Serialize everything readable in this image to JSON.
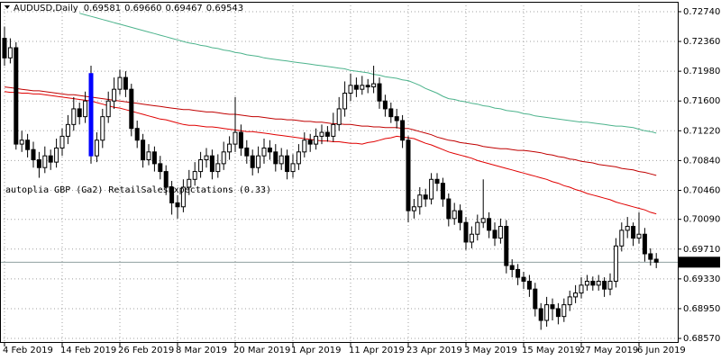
{
  "chart_data": {
    "type": "candlestick",
    "title": "AUDUSD,Daily",
    "header_ohlc": [
      "0.69581",
      "0.69660",
      "0.69467",
      "0.69543"
    ],
    "annotation": "autoplia GBP (Ga2) RetailSalesExpectations (0.33)",
    "annotation_color": "#e8e86a",
    "categories": [
      "4 Feb 2019",
      null,
      null,
      null,
      null,
      null,
      null,
      null,
      null,
      null,
      "14 Feb 2019",
      null,
      null,
      null,
      null,
      null,
      null,
      null,
      null,
      null,
      "26 Feb 2019",
      null,
      null,
      null,
      null,
      null,
      null,
      null,
      null,
      null,
      "8 Mar 2019",
      null,
      null,
      null,
      null,
      null,
      null,
      null,
      null,
      null,
      "20 Mar 2019",
      null,
      null,
      null,
      null,
      null,
      null,
      null,
      null,
      null,
      "1 Apr 2019",
      null,
      null,
      null,
      null,
      null,
      null,
      null,
      null,
      null,
      "11 Apr 2019",
      null,
      null,
      null,
      null,
      null,
      null,
      null,
      null,
      null,
      "23 Apr 2019",
      null,
      null,
      null,
      null,
      null,
      null,
      null,
      null,
      null,
      "3 May 2019",
      null,
      null,
      null,
      null,
      null,
      null,
      null,
      null,
      null,
      "15 May 2019",
      null,
      null,
      null,
      null,
      null,
      null,
      null,
      null,
      null,
      "27 May 2019",
      null,
      null,
      null,
      null,
      null,
      null,
      null,
      null,
      null,
      "6 Jun 2019",
      null,
      null,
      null
    ],
    "open": [
      0.724,
      0.7215,
      0.7228,
      0.7105,
      0.711,
      0.7098,
      0.7085,
      0.7075,
      0.709,
      0.7082,
      0.71,
      0.7115,
      0.713,
      0.715,
      0.714,
      0.7195,
      0.709,
      0.711,
      0.714,
      0.716,
      0.7175,
      0.719,
      0.7175,
      0.7125,
      0.711,
      0.7085,
      0.7095,
      0.708,
      0.707,
      0.705,
      0.703,
      0.7025,
      0.705,
      0.706,
      0.707,
      0.7085,
      0.709,
      0.707,
      0.708,
      0.7095,
      0.7105,
      0.712,
      0.71,
      0.709,
      0.7075,
      0.709,
      0.71,
      0.7095,
      0.708,
      0.709,
      0.707,
      0.708,
      0.7095,
      0.711,
      0.7105,
      0.7115,
      0.712,
      0.7115,
      0.713,
      0.715,
      0.717,
      0.718,
      0.7175,
      0.718,
      0.7178,
      0.7182,
      0.716,
      0.715,
      0.714,
      0.7135,
      0.711,
      0.702,
      0.7025,
      0.704,
      0.7035,
      0.706,
      0.7055,
      0.7035,
      0.701,
      0.702,
      0.7005,
      0.698,
      0.699,
      0.7005,
      0.701,
      0.6995,
      0.6985,
      0.7,
      0.695,
      0.6945,
      0.6935,
      0.693,
      0.692,
      0.6895,
      0.688,
      0.69,
      0.6895,
      0.6885,
      0.69,
      0.691,
      0.6915,
      0.6925,
      0.693,
      0.6925,
      0.693,
      0.692,
      0.693,
      0.6975,
      0.6995,
      0.7,
      0.6985,
      0.699,
      0.6965,
      0.69581
    ],
    "high": [
      0.7255,
      0.724,
      0.7235,
      0.7122,
      0.7118,
      0.7108,
      0.7095,
      0.7102,
      0.7098,
      0.7112,
      0.7125,
      0.7142,
      0.7165,
      0.7158,
      0.7172,
      0.7205,
      0.712,
      0.715,
      0.7172,
      0.719,
      0.72,
      0.7198,
      0.7182,
      0.7135,
      0.7118,
      0.7105,
      0.7102,
      0.709,
      0.7078,
      0.7058,
      0.704,
      0.706,
      0.7072,
      0.7082,
      0.7095,
      0.71,
      0.7098,
      0.7092,
      0.7108,
      0.7115,
      0.7165,
      0.713,
      0.711,
      0.7098,
      0.7102,
      0.7112,
      0.711,
      0.7105,
      0.71,
      0.7098,
      0.7092,
      0.7105,
      0.712,
      0.7118,
      0.7125,
      0.713,
      0.7128,
      0.7145,
      0.7165,
      0.7185,
      0.7195,
      0.719,
      0.7192,
      0.7188,
      0.7205,
      0.719,
      0.7168,
      0.7158,
      0.715,
      0.7142,
      0.7115,
      0.7035,
      0.705,
      0.7048,
      0.7068,
      0.7068,
      0.7062,
      0.7042,
      0.703,
      0.7028,
      0.7012,
      0.7,
      0.7015,
      0.706,
      0.7018,
      0.7005,
      0.701,
      0.7008,
      0.6958,
      0.6952,
      0.6942,
      0.6938,
      0.6928,
      0.6902,
      0.691,
      0.6908,
      0.6902,
      0.6908,
      0.6918,
      0.6925,
      0.6935,
      0.6938,
      0.6936,
      0.6938,
      0.6935,
      0.694,
      0.6985,
      0.7005,
      0.7012,
      0.7005,
      0.7018,
      0.6998,
      0.6972,
      0.6966
    ],
    "low": [
      0.7205,
      0.7208,
      0.7098,
      0.7095,
      0.7088,
      0.7075,
      0.7062,
      0.7068,
      0.7072,
      0.7075,
      0.709,
      0.7105,
      0.7122,
      0.713,
      0.7132,
      0.708,
      0.7082,
      0.71,
      0.7132,
      0.715,
      0.7168,
      0.7165,
      0.7115,
      0.71,
      0.7075,
      0.7078,
      0.707,
      0.706,
      0.704,
      0.7015,
      0.701,
      0.7018,
      0.704,
      0.7052,
      0.7062,
      0.7075,
      0.706,
      0.7062,
      0.7072,
      0.7085,
      0.7095,
      0.709,
      0.708,
      0.7065,
      0.7068,
      0.708,
      0.7085,
      0.707,
      0.7072,
      0.706,
      0.7062,
      0.7072,
      0.7088,
      0.7095,
      0.7098,
      0.7105,
      0.7108,
      0.7108,
      0.7122,
      0.714,
      0.716,
      0.7165,
      0.7168,
      0.717,
      0.717,
      0.715,
      0.714,
      0.7132,
      0.7125,
      0.71,
      0.7005,
      0.701,
      0.7015,
      0.7025,
      0.7028,
      0.7045,
      0.7025,
      0.7,
      0.7002,
      0.6995,
      0.697,
      0.6972,
      0.6982,
      0.6998,
      0.6985,
      0.6975,
      0.6978,
      0.694,
      0.6935,
      0.6925,
      0.692,
      0.691,
      0.6885,
      0.6868,
      0.6872,
      0.688,
      0.6875,
      0.6878,
      0.6892,
      0.6902,
      0.6908,
      0.6918,
      0.6918,
      0.6918,
      0.691,
      0.6912,
      0.6922,
      0.6968,
      0.6985,
      0.6975,
      0.6978,
      0.6955,
      0.695,
      0.69467
    ],
    "close": [
      0.7215,
      0.7228,
      0.7105,
      0.711,
      0.7098,
      0.7085,
      0.7075,
      0.709,
      0.7082,
      0.71,
      0.7115,
      0.713,
      0.715,
      0.714,
      0.716,
      0.709,
      0.711,
      0.714,
      0.716,
      0.7175,
      0.719,
      0.7175,
      0.7125,
      0.711,
      0.7085,
      0.7095,
      0.708,
      0.707,
      0.705,
      0.703,
      0.7025,
      0.705,
      0.706,
      0.707,
      0.7085,
      0.709,
      0.707,
      0.708,
      0.7095,
      0.7105,
      0.712,
      0.71,
      0.709,
      0.7075,
      0.709,
      0.71,
      0.7095,
      0.708,
      0.709,
      0.707,
      0.708,
      0.7095,
      0.711,
      0.7105,
      0.7115,
      0.712,
      0.7115,
      0.713,
      0.715,
      0.717,
      0.718,
      0.7175,
      0.718,
      0.7178,
      0.7182,
      0.716,
      0.715,
      0.714,
      0.7135,
      0.711,
      0.702,
      0.7025,
      0.704,
      0.7035,
      0.706,
      0.7055,
      0.7035,
      0.701,
      0.702,
      0.7005,
      0.698,
      0.699,
      0.7005,
      0.701,
      0.6995,
      0.6985,
      0.7,
      0.695,
      0.6945,
      0.6935,
      0.693,
      0.692,
      0.6895,
      0.688,
      0.69,
      0.6895,
      0.6885,
      0.69,
      0.691,
      0.6915,
      0.6925,
      0.693,
      0.6925,
      0.693,
      0.692,
      0.693,
      0.6975,
      0.6995,
      0.7,
      0.6985,
      0.699,
      0.6965,
      0.6958,
      0.69543
    ],
    "bull_color": "#ffffff",
    "bear_color": "#000000",
    "highlight": {
      "index": 15,
      "color": "#0000ff"
    },
    "series": [
      {
        "color": "#c00000",
        "values": [
          0.7178,
          0.7177,
          0.7176,
          0.7175,
          0.7174,
          0.7173,
          0.7173,
          0.7172,
          0.7171,
          0.717,
          0.7169,
          0.7168,
          0.7168,
          0.7167,
          0.7166,
          0.7165,
          0.7164,
          0.7163,
          0.7162,
          0.7161,
          0.716,
          0.7159,
          0.7158,
          0.7157,
          0.7156,
          0.7155,
          0.7154,
          0.7153,
          0.7152,
          0.7151,
          0.715,
          0.7149,
          0.7149,
          0.7148,
          0.7147,
          0.7146,
          0.7146,
          0.7145,
          0.7144,
          0.7143,
          0.7143,
          0.7142,
          0.7141,
          0.714,
          0.714,
          0.7139,
          0.7138,
          0.7137,
          0.7137,
          0.7136,
          0.7136,
          0.7135,
          0.7134,
          0.7134,
          0.7133,
          0.7133,
          0.7132,
          0.7131,
          0.7131,
          0.713,
          0.713,
          0.7129,
          0.7128,
          0.7128,
          0.7127,
          0.7127,
          0.7126,
          0.7126,
          0.7126,
          0.7125,
          0.7125,
          0.7123,
          0.7121,
          0.7119,
          0.7117,
          0.7114,
          0.7112,
          0.711,
          0.7109,
          0.7107,
          0.7106,
          0.7105,
          0.7104,
          0.7102,
          0.7101,
          0.71,
          0.7099,
          0.7099,
          0.7098,
          0.7097,
          0.7097,
          0.7096,
          0.7095,
          0.7094,
          0.7092,
          0.7091,
          0.7089,
          0.7088,
          0.7086,
          0.7085,
          0.7083,
          0.7082,
          0.7081,
          0.7079,
          0.7078,
          0.7077,
          0.7076,
          0.7074,
          0.7073,
          0.7072,
          0.707,
          0.7069,
          0.7067,
          0.7065
        ]
      },
      {
        "color": "#e00000",
        "values": [
          0.7172,
          0.7171,
          0.7171,
          0.717,
          0.717,
          0.7169,
          0.7169,
          0.7168,
          0.7167,
          0.7166,
          0.7165,
          0.7164,
          0.7163,
          0.7162,
          0.7161,
          0.716,
          0.7158,
          0.7156,
          0.7154,
          0.7152,
          0.7151,
          0.7149,
          0.7147,
          0.7145,
          0.7143,
          0.7141,
          0.7139,
          0.7137,
          0.7136,
          0.7134,
          0.7132,
          0.713,
          0.7129,
          0.7129,
          0.7128,
          0.7127,
          0.7127,
          0.7126,
          0.7125,
          0.7124,
          0.7123,
          0.7122,
          0.7121,
          0.7121,
          0.712,
          0.7119,
          0.7118,
          0.7117,
          0.7116,
          0.7115,
          0.7114,
          0.7113,
          0.7112,
          0.7111,
          0.711,
          0.7109,
          0.7109,
          0.7108,
          0.7108,
          0.7107,
          0.7106,
          0.7106,
          0.7105,
          0.7107,
          0.7108,
          0.711,
          0.7112,
          0.7113,
          0.7115,
          0.7114,
          0.7113,
          0.7112,
          0.7109,
          0.7106,
          0.7104,
          0.7101,
          0.7098,
          0.7095,
          0.7093,
          0.7091,
          0.7089,
          0.7087,
          0.7084,
          0.7082,
          0.708,
          0.7078,
          0.7076,
          0.7074,
          0.7072,
          0.707,
          0.7068,
          0.7066,
          0.7064,
          0.7062,
          0.706,
          0.7057,
          0.7055,
          0.7052,
          0.705,
          0.7047,
          0.7045,
          0.7042,
          0.704,
          0.7038,
          0.7036,
          0.7034,
          0.7031,
          0.7029,
          0.7027,
          0.7025,
          0.7023,
          0.7021,
          0.7018,
          0.7016
        ]
      },
      {
        "color": "#4cb38c",
        "values": [
          null,
          null,
          null,
          null,
          null,
          null,
          null,
          null,
          null,
          null,
          null,
          null,
          null,
          0.7272,
          0.727,
          0.7268,
          0.7266,
          0.7264,
          0.7262,
          0.726,
          0.7258,
          0.7256,
          0.7254,
          0.7252,
          0.725,
          0.7248,
          0.7246,
          0.7244,
          0.7242,
          0.724,
          0.7238,
          0.7236,
          0.7234,
          0.7233,
          0.7231,
          0.723,
          0.7228,
          0.7227,
          0.7225,
          0.7224,
          0.7222,
          0.7221,
          0.7219,
          0.7218,
          0.7217,
          0.7215,
          0.7214,
          0.7213,
          0.7212,
          0.7211,
          0.721,
          0.7209,
          0.7208,
          0.7207,
          0.7206,
          0.7205,
          0.7204,
          0.7203,
          0.7202,
          0.7201,
          0.7199,
          0.7198,
          0.7197,
          0.7196,
          0.7194,
          0.7193,
          0.7191,
          0.719,
          0.7189,
          0.7187,
          0.7186,
          0.7183,
          0.718,
          0.7176,
          0.7173,
          0.717,
          0.7166,
          0.7163,
          0.7162,
          0.716,
          0.7159,
          0.7157,
          0.7156,
          0.7154,
          0.7153,
          0.7151,
          0.715,
          0.7148,
          0.7147,
          0.7146,
          0.7144,
          0.7143,
          0.7141,
          0.714,
          0.7139,
          0.7138,
          0.7137,
          0.7136,
          0.7135,
          0.7134,
          0.7133,
          0.7133,
          0.7132,
          0.7131,
          0.713,
          0.7129,
          0.7128,
          0.7128,
          0.7127,
          0.7126,
          0.7124,
          0.7122,
          0.7121,
          0.7119
        ]
      }
    ],
    "ylim": [
      0.68513,
      0.72866
    ],
    "yticks": [
      {
        "value": 0.7274,
        "label": "0.72740"
      },
      {
        "value": 0.7236,
        "label": "0.72360"
      },
      {
        "value": 0.7198,
        "label": "0.71980"
      },
      {
        "value": 0.716,
        "label": "0.71600"
      },
      {
        "value": 0.7122,
        "label": "0.71220"
      },
      {
        "value": 0.7084,
        "label": "0.70840"
      },
      {
        "value": 0.7046,
        "label": "0.70460"
      },
      {
        "value": 0.7009,
        "label": "0.70090"
      },
      {
        "value": 0.6971,
        "label": "0.69710"
      },
      {
        "value": 0.6933,
        "label": "0.69330"
      },
      {
        "value": 0.6895,
        "label": "0.68950"
      },
      {
        "value": 0.6857,
        "label": "0.68570"
      }
    ],
    "grid": true,
    "price_line_color": "#8fa0a0"
  }
}
